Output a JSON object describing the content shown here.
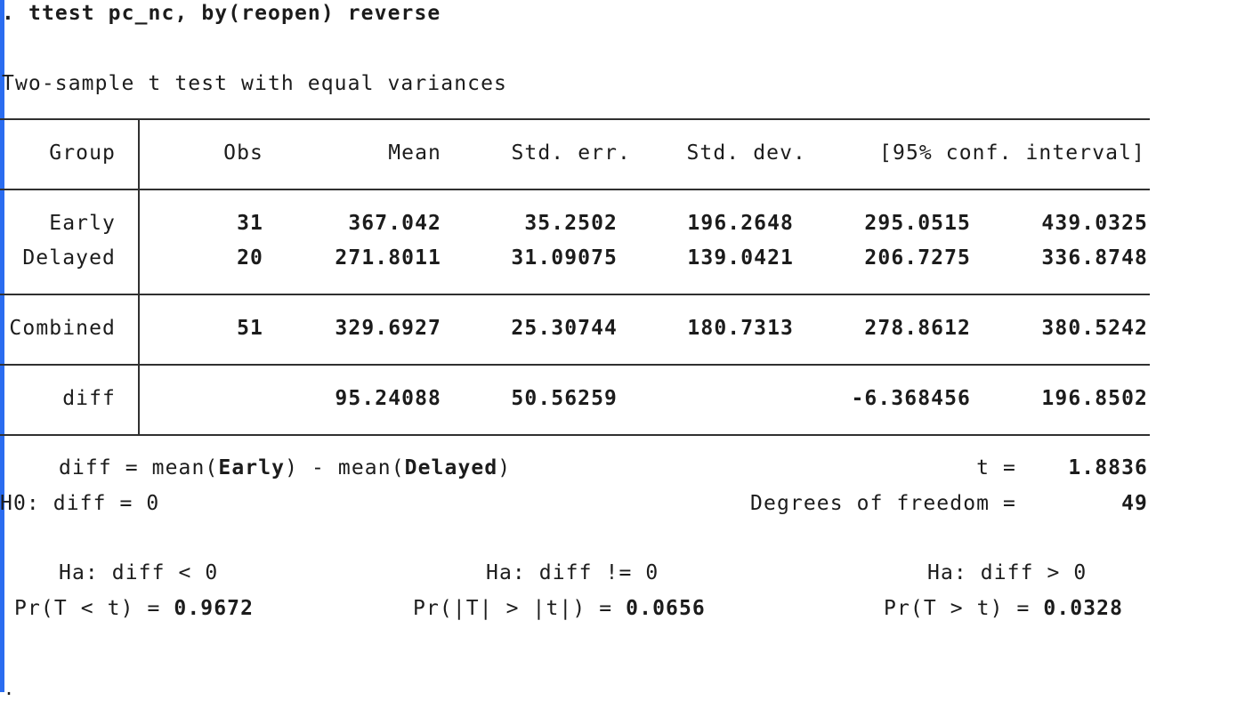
{
  "command": {
    "prompt": ".",
    "text": "ttest pc_nc, by(reopen) reverse"
  },
  "title": "Two-sample t test with equal variances",
  "table": {
    "headers": [
      "Group",
      "Obs",
      "Mean",
      "Std. err.",
      "Std. dev.",
      "[95% conf. interval]"
    ],
    "groups": [
      {
        "group": "Early",
        "obs": "31",
        "mean": "367.042",
        "se": "35.2502",
        "sd": "196.2648",
        "ci_low": "295.0515",
        "ci_high": "439.0325"
      },
      {
        "group": "Delayed",
        "obs": "20",
        "mean": "271.8011",
        "se": "31.09075",
        "sd": "139.0421",
        "ci_low": "206.7275",
        "ci_high": "336.8748"
      }
    ],
    "combined": {
      "group": "Combined",
      "obs": "51",
      "mean": "329.6927",
      "se": "25.30744",
      "sd": "180.7313",
      "ci_low": "278.8612",
      "ci_high": "380.5242"
    },
    "diff": {
      "group": "diff",
      "mean": "95.24088",
      "se": "50.56259",
      "ci_low": "-6.368456",
      "ci_high": "196.8502"
    }
  },
  "summary": {
    "diff_label_pre": "diff = mean(",
    "group1": "Early",
    "diff_label_mid": ") - mean(",
    "group2": "Delayed",
    "diff_label_post": ")",
    "t_label": "t =",
    "t_value": "1.8836",
    "h0": "H0: diff = 0",
    "df_label": "Degrees of freedom =",
    "df_value": "49"
  },
  "alternatives": [
    {
      "ha": "Ha: diff < 0",
      "pr_label": "Pr(T < t) =",
      "pr_value": "0.9672"
    },
    {
      "ha": "Ha: diff != 0",
      "pr_label": "Pr(|T| > |t|) =",
      "pr_value": "0.0656"
    },
    {
      "ha": "Ha: diff > 0",
      "pr_label": "Pr(T > t) =",
      "pr_value": "0.0328"
    }
  ],
  "bottom_prompt": "."
}
